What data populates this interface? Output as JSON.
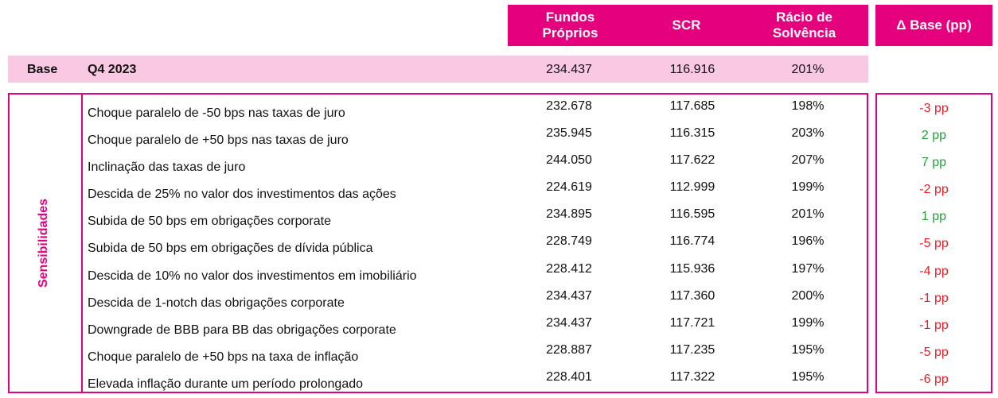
{
  "header": {
    "own_funds": "Fundos\nPróprios",
    "scr": "SCR",
    "solvency_ratio": "Rácio de\nSolvência",
    "delta_base": "Δ Base (pp)"
  },
  "base": {
    "label": "Base",
    "period": "Q4 2023",
    "own_funds": "234.437",
    "scr": "116.916",
    "ratio": "201%"
  },
  "sensitivities_label": "Sensibilidades",
  "colors": {
    "accent": "#e5007e",
    "base_fill": "#f9c9e3",
    "negative": "#ee1c25",
    "positive": "#21a038"
  },
  "rows": [
    {
      "description": "Choque paralelo de -50 bps nas taxas de juro",
      "own_funds": "232.678",
      "scr": "117.685",
      "ratio": "198%",
      "delta": "-3 pp",
      "sign": "neg"
    },
    {
      "description": "Choque paralelo de +50 bps nas taxas de juro",
      "own_funds": "235.945",
      "scr": "116.315",
      "ratio": "203%",
      "delta": "2 pp",
      "sign": "pos"
    },
    {
      "description": "Inclinação das taxas de juro",
      "own_funds": "244.050",
      "scr": "117.622",
      "ratio": "207%",
      "delta": "7 pp",
      "sign": "pos"
    },
    {
      "description": "Descida de 25% no valor dos investimentos das ações",
      "own_funds": "224.619",
      "scr": "112.999",
      "ratio": "199%",
      "delta": "-2 pp",
      "sign": "neg"
    },
    {
      "description": "Subida de 50 bps em obrigações corporate",
      "own_funds": "234.895",
      "scr": "116.595",
      "ratio": "201%",
      "delta": "1 pp",
      "sign": "pos"
    },
    {
      "description": "Subida de 50 bps em obrigações de dívida pública",
      "own_funds": "228.749",
      "scr": "116.774",
      "ratio": "196%",
      "delta": "-5 pp",
      "sign": "neg"
    },
    {
      "description": "Descida de 10% no valor dos investimentos em imobiliário",
      "own_funds": "228.412",
      "scr": "115.936",
      "ratio": "197%",
      "delta": "-4 pp",
      "sign": "neg"
    },
    {
      "description": "Descida de 1-notch das obrigações corporate",
      "own_funds": "234.437",
      "scr": "117.360",
      "ratio": "200%",
      "delta": "-1 pp",
      "sign": "neg"
    },
    {
      "description": "Downgrade de BBB para BB das obrigações corporate",
      "own_funds": "234.437",
      "scr": "117.721",
      "ratio": "199%",
      "delta": "-1 pp",
      "sign": "neg"
    },
    {
      "description": "Choque paralelo de +50 bps na taxa de inflação",
      "own_funds": "228.887",
      "scr": "117.235",
      "ratio": "195%",
      "delta": "-5 pp",
      "sign": "neg"
    },
    {
      "description": "Elevada inflação durante um período prolongado",
      "own_funds": "228.401",
      "scr": "117.322",
      "ratio": "195%",
      "delta": "-6 pp",
      "sign": "neg"
    }
  ]
}
